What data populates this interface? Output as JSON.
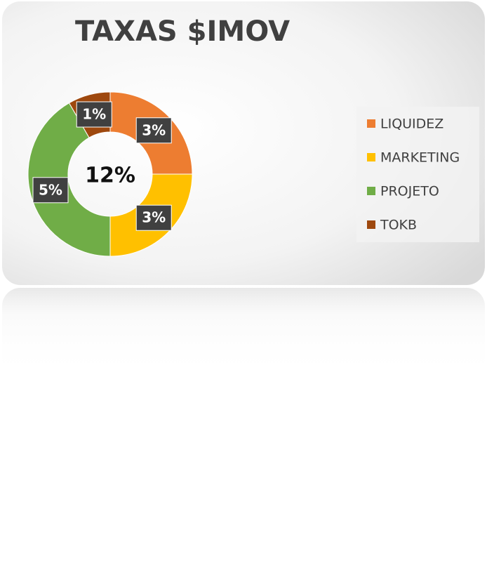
{
  "chart_data": {
    "type": "donut",
    "title": "TAXAS $IMOV",
    "center_label": "12%",
    "categories": [
      "LIQUIDEZ",
      "MARKETING",
      "PROJETO",
      "TOKB"
    ],
    "values": [
      3,
      3,
      5,
      1
    ],
    "value_labels": [
      "3%",
      "3%",
      "5%",
      "1%"
    ],
    "colors": [
      "#ed7d31",
      "#ffc000",
      "#70ad47",
      "#9e480e"
    ],
    "legend": "right"
  }
}
